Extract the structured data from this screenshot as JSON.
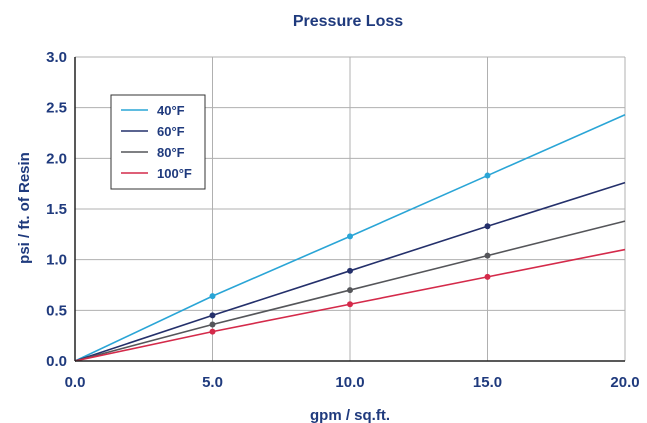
{
  "chart_data": {
    "type": "line",
    "title": "Pressure Loss",
    "xlabel": "gpm / sq.ft.",
    "ylabel": "psi / ft. of Resin",
    "xlim": [
      0,
      20
    ],
    "ylim": [
      0,
      3
    ],
    "x_ticks": [
      "0.0",
      "5.0",
      "10.0",
      "15.0",
      "20.0"
    ],
    "y_ticks": [
      "0.0",
      "0.5",
      "1.0",
      "1.5",
      "2.0",
      "2.5",
      "3.0"
    ],
    "grid": true,
    "legend_position": "top-left",
    "series": [
      {
        "name": "40°F",
        "color": "#2aa5d6",
        "x": [
          0,
          5,
          10,
          15,
          20
        ],
        "y": [
          0,
          0.64,
          1.23,
          1.83,
          2.43
        ],
        "markers": [
          5,
          10,
          15
        ]
      },
      {
        "name": "60°F",
        "color": "#24306b",
        "x": [
          0,
          5,
          10,
          15,
          20
        ],
        "y": [
          0,
          0.45,
          0.89,
          1.33,
          1.76
        ],
        "markers": [
          5,
          10,
          15
        ]
      },
      {
        "name": "80°F",
        "color": "#55565a",
        "x": [
          0,
          5,
          10,
          15,
          20
        ],
        "y": [
          0,
          0.36,
          0.7,
          1.04,
          1.38
        ],
        "markers": [
          5,
          10,
          15
        ]
      },
      {
        "name": "100°F",
        "color": "#d42a4a",
        "x": [
          0,
          5,
          10,
          15,
          20
        ],
        "y": [
          0,
          0.29,
          0.56,
          0.83,
          1.1
        ],
        "markers": [
          5,
          10,
          15
        ]
      }
    ],
    "colors": {
      "text": "#1f3a7d",
      "grid": "#b0b0b0",
      "axis": "#222222"
    }
  }
}
